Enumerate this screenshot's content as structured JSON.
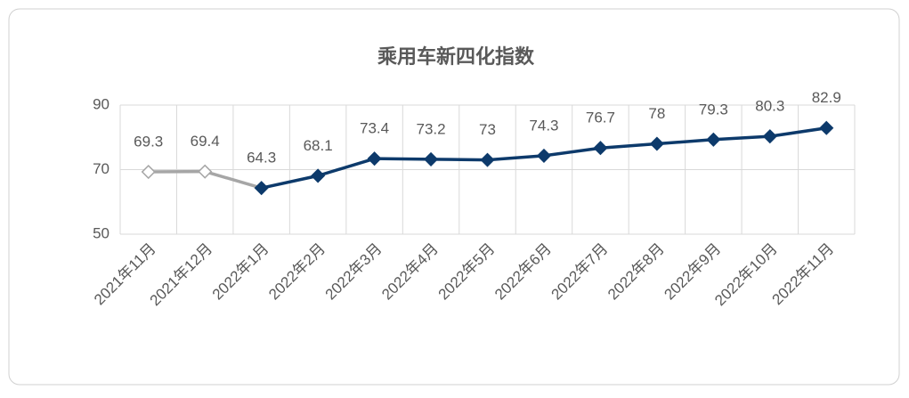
{
  "chart_data": {
    "type": "line",
    "title": "乘用车新四化指数",
    "categories": [
      "2021年11月",
      "2021年12月",
      "2022年1月",
      "2022年2月",
      "2022年3月",
      "2022年4月",
      "2022年5月",
      "2022年6月",
      "2022年7月",
      "2022年8月",
      "2022年9月",
      "2022年10月",
      "2022年11月"
    ],
    "values": [
      69.3,
      69.4,
      64.3,
      68.1,
      73.4,
      73.2,
      73.0,
      74.3,
      76.7,
      78.0,
      79.3,
      80.3,
      82.9
    ],
    "point_colors": [
      "#a6a6a6",
      "#a6a6a6",
      "#0d3a6b",
      "#0d3a6b",
      "#0d3a6b",
      "#0d3a6b",
      "#0d3a6b",
      "#0d3a6b",
      "#0d3a6b",
      "#0d3a6b",
      "#0d3a6b",
      "#0d3a6b",
      "#0d3a6b"
    ],
    "marker_fills": [
      "#ffffff",
      "#ffffff",
      "#0d3a6b",
      "#0d3a6b",
      "#0d3a6b",
      "#0d3a6b",
      "#0d3a6b",
      "#0d3a6b",
      "#0d3a6b",
      "#0d3a6b",
      "#0d3a6b",
      "#0d3a6b",
      "#0d3a6b"
    ],
    "ylim": [
      50,
      90
    ],
    "yticks": [
      50,
      70,
      90
    ],
    "grid": true
  }
}
